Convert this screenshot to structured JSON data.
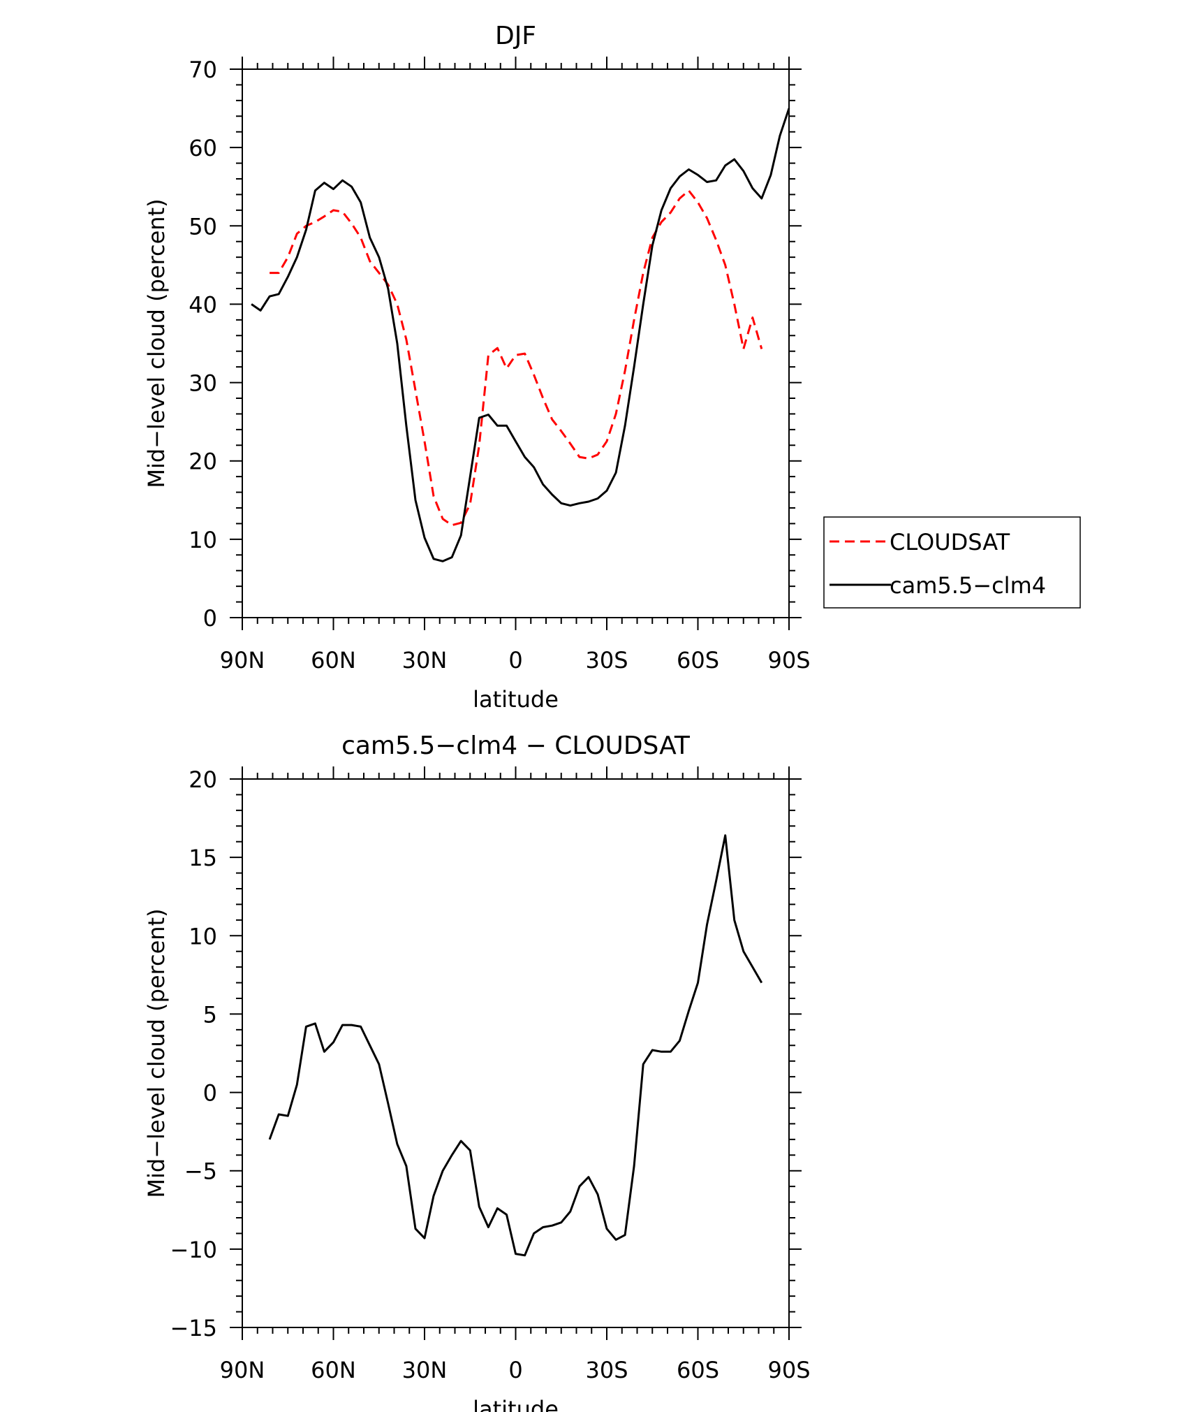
{
  "chart_data": [
    {
      "type": "line",
      "title": "DJF",
      "xlabel": "latitude",
      "ylabel": "Mid−level cloud (percent)",
      "xlim": [
        90,
        -90
      ],
      "ylim": [
        0,
        70
      ],
      "xticks": [
        {
          "value": 90,
          "label": "90N"
        },
        {
          "value": 60,
          "label": "60N"
        },
        {
          "value": 30,
          "label": "30N"
        },
        {
          "value": 0,
          "label": "0"
        },
        {
          "value": -30,
          "label": "30S"
        },
        {
          "value": -60,
          "label": "60S"
        },
        {
          "value": -90,
          "label": "90S"
        }
      ],
      "yticks": [
        {
          "value": 0,
          "label": "0"
        },
        {
          "value": 10,
          "label": "10"
        },
        {
          "value": 20,
          "label": "20"
        },
        {
          "value": 30,
          "label": "30"
        },
        {
          "value": 40,
          "label": "40"
        },
        {
          "value": 50,
          "label": "50"
        },
        {
          "value": 60,
          "label": "60"
        },
        {
          "value": 70,
          "label": "70"
        }
      ],
      "legend": "right",
      "series": [
        {
          "name": "CLOUDSAT",
          "color": "#ff0000",
          "dash": "dashed",
          "x": [
            81,
            78,
            75,
            72,
            69,
            66,
            63,
            60,
            57,
            54,
            51,
            48,
            45,
            42,
            39,
            36,
            33,
            30,
            27,
            24,
            21,
            18,
            15,
            12,
            9,
            6,
            3,
            0,
            -3,
            -6,
            -9,
            -12,
            -15,
            -18,
            -21,
            -24,
            -27,
            -30,
            -33,
            -36,
            -39,
            -42,
            -45,
            -48,
            -51,
            -54,
            -57,
            -60,
            -63,
            -66,
            -69,
            -72,
            -75,
            -78,
            -81
          ],
          "y": [
            44,
            44,
            46,
            49,
            50,
            50.5,
            51.2,
            52,
            51.8,
            50.3,
            48.5,
            45.5,
            44,
            42.5,
            40,
            35.5,
            29,
            22.5,
            15.5,
            12.6,
            11.8,
            12.1,
            14.5,
            22,
            33.5,
            34.4,
            31.8,
            33.5,
            33.7,
            31,
            28,
            25.3,
            23.8,
            22.2,
            20.5,
            20.3,
            20.8,
            22.5,
            26,
            31.5,
            38,
            44,
            48.5,
            50.5,
            51.7,
            53.5,
            54.5,
            53,
            51,
            48.2,
            45,
            40,
            34.3,
            38.3,
            34.3
          ]
        },
        {
          "name": "cam5.5−clm4",
          "color": "#000000",
          "dash": "solid",
          "x": [
            87,
            84,
            81,
            78,
            75,
            72,
            69,
            66,
            63,
            60,
            57,
            54,
            51,
            48,
            45,
            42,
            39,
            36,
            33,
            30,
            27,
            24,
            21,
            18,
            15,
            12,
            9,
            6,
            3,
            0,
            -3,
            -6,
            -9,
            -12,
            -15,
            -18,
            -21,
            -24,
            -27,
            -30,
            -33,
            -36,
            -39,
            -42,
            -45,
            -48,
            -51,
            -54,
            -57,
            -60,
            -63,
            -66,
            -69,
            -72,
            -75,
            -78,
            -81,
            -84,
            -87,
            -90
          ],
          "y": [
            40,
            39.2,
            41,
            41.3,
            43.5,
            46,
            49.5,
            54.5,
            55.5,
            54.7,
            55.8,
            55,
            53,
            48.5,
            46,
            42,
            35,
            24.5,
            15,
            10.2,
            7.5,
            7.2,
            7.7,
            10.5,
            18,
            25.5,
            25.9,
            24.5,
            24.5,
            22.5,
            20.5,
            19.2,
            17,
            15.7,
            14.6,
            14.3,
            14.6,
            14.8,
            15.2,
            16.2,
            18.5,
            24.5,
            32,
            40,
            47.5,
            52,
            54.8,
            56.3,
            57.2,
            56.5,
            55.6,
            55.8,
            57.7,
            58.5,
            57,
            54.8,
            53.5,
            56.5,
            61.5,
            65
          ]
        }
      ]
    },
    {
      "type": "line",
      "title": "cam5.5−clm4 − CLOUDSAT",
      "xlabel": "latitude",
      "ylabel": "Mid−level cloud (percent)",
      "xlim": [
        90,
        -90
      ],
      "ylim": [
        -15,
        20
      ],
      "xticks": [
        {
          "value": 90,
          "label": "90N"
        },
        {
          "value": 60,
          "label": "60N"
        },
        {
          "value": 30,
          "label": "30N"
        },
        {
          "value": 0,
          "label": "0"
        },
        {
          "value": -30,
          "label": "30S"
        },
        {
          "value": -60,
          "label": "60S"
        },
        {
          "value": -90,
          "label": "90S"
        }
      ],
      "yticks": [
        {
          "value": -15,
          "label": "−15"
        },
        {
          "value": -10,
          "label": "−10"
        },
        {
          "value": -5,
          "label": "−5"
        },
        {
          "value": 0,
          "label": "0"
        },
        {
          "value": 5,
          "label": "5"
        },
        {
          "value": 10,
          "label": "10"
        },
        {
          "value": 15,
          "label": "15"
        },
        {
          "value": 20,
          "label": "20"
        }
      ],
      "series": [
        {
          "color": "#000000",
          "dash": "solid",
          "x": [
            81,
            78,
            75,
            72,
            69,
            66,
            63,
            60,
            57,
            54,
            51,
            48,
            45,
            42,
            39,
            36,
            33,
            30,
            27,
            24,
            21,
            18,
            15,
            12,
            9,
            6,
            3,
            0,
            -3,
            -6,
            -9,
            -12,
            -15,
            -18,
            -21,
            -24,
            -27,
            -30,
            -33,
            -36,
            -39,
            -42,
            -45,
            -48,
            -51,
            -54,
            -57,
            -60,
            -63,
            -66,
            -69,
            -72,
            -75,
            -78,
            -81
          ],
          "y": [
            -3,
            -1.4,
            -1.5,
            0.5,
            4.2,
            4.4,
            2.6,
            3.2,
            4.3,
            4.3,
            4.2,
            3,
            1.8,
            -0.7,
            -3.3,
            -4.7,
            -8.7,
            -9.3,
            -6.6,
            -5,
            -4,
            -3.1,
            -3.7,
            -7.3,
            -8.6,
            -7.4,
            -7.8,
            -10.3,
            -10.4,
            -9,
            -8.6,
            -8.5,
            -8.3,
            -7.6,
            -6,
            -5.4,
            -6.5,
            -8.7,
            -9.4,
            -9.1,
            -4.7,
            1.8,
            2.7,
            2.6,
            2.6,
            3.3,
            5.2,
            7,
            10.7,
            13.5,
            16.4,
            11,
            9,
            8,
            7
          ]
        }
      ]
    }
  ]
}
